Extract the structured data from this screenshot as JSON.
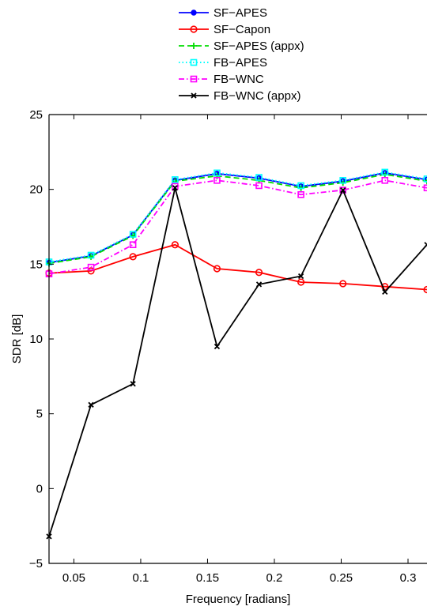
{
  "chart_data": {
    "type": "line",
    "title": "",
    "xlabel": "Frequency [radians]",
    "ylabel": "SDR [dB]",
    "xlim": [
      0.0314,
      0.3142
    ],
    "ylim": [
      -5,
      25
    ],
    "xticks": [
      0.05,
      0.1,
      0.15,
      0.2,
      0.25,
      0.3
    ],
    "xtick_labels": [
      "0.05",
      "0.1",
      "0.15",
      "0.2",
      "0.25",
      "0.3"
    ],
    "yticks": [
      -5,
      0,
      5,
      10,
      15,
      20,
      25
    ],
    "ytick_labels": [
      "−5",
      "0",
      "5",
      "10",
      "15",
      "20",
      "25"
    ],
    "grid": false,
    "legend_position": "top-center, outside plot",
    "x": [
      0.0314,
      0.0628,
      0.0942,
      0.1257,
      0.1571,
      0.1885,
      0.2199,
      0.2513,
      0.2827,
      0.3142
    ],
    "series": [
      {
        "name": "SF−APES",
        "color": "#0000ff",
        "line": "solid",
        "marker": "dot",
        "values": [
          15.1,
          15.55,
          16.95,
          20.6,
          21.05,
          20.75,
          20.2,
          20.55,
          21.1,
          20.65
        ]
      },
      {
        "name": "SF−Capon",
        "color": "#ff0000",
        "line": "solid",
        "marker": "circle",
        "values": [
          14.4,
          14.55,
          15.5,
          16.3,
          14.7,
          14.45,
          13.8,
          13.7,
          13.5,
          13.3
        ]
      },
      {
        "name": "SF−APES (appx)",
        "color": "#00dd00",
        "line": "dashed",
        "marker": "plus",
        "values": [
          15.05,
          15.5,
          16.9,
          20.55,
          20.9,
          20.6,
          20.1,
          20.45,
          21.0,
          20.55
        ]
      },
      {
        "name": "FB−APES",
        "color": "#00ffff",
        "line": "dotted",
        "marker": "square",
        "values": [
          15.15,
          15.6,
          17.0,
          20.65,
          21.1,
          20.8,
          20.25,
          20.6,
          21.15,
          20.7
        ]
      },
      {
        "name": "FB−WNC",
        "color": "#ff00ff",
        "line": "dashdot",
        "marker": "square",
        "values": [
          14.35,
          14.8,
          16.3,
          20.2,
          20.6,
          20.25,
          19.65,
          19.95,
          20.6,
          20.1
        ]
      },
      {
        "name": "FB−WNC (appx)",
        "color": "#000000",
        "line": "solid",
        "marker": "x",
        "values": [
          -3.2,
          5.6,
          7.0,
          20.1,
          9.5,
          13.65,
          14.2,
          19.95,
          13.15,
          16.3
        ]
      }
    ]
  }
}
